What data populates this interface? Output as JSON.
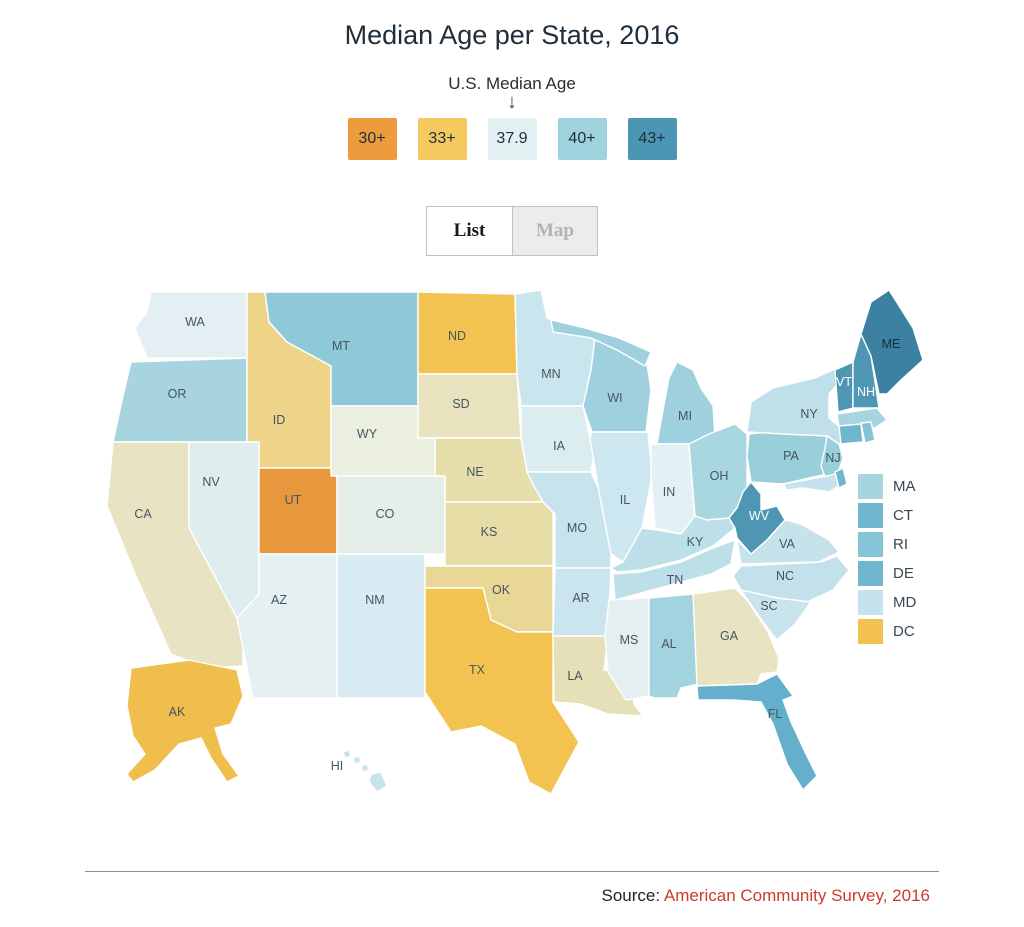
{
  "title": "Median Age per State, 2016",
  "legend": {
    "annotation": "U.S. Median Age",
    "arrow_icon": "↓",
    "bins": [
      {
        "label": "30+",
        "color": "#EC9C3D"
      },
      {
        "label": "33+",
        "color": "#F6C95E"
      },
      {
        "label": "37.9",
        "color": "#E4F1F3"
      },
      {
        "label": "40+",
        "color": "#9ED3DE"
      },
      {
        "label": "43+",
        "color": "#4C95B4"
      }
    ]
  },
  "view_toggle": {
    "options": [
      "List",
      "Map"
    ],
    "active": "List"
  },
  "small_state_legend": [
    {
      "abbr": "MA",
      "color": "#A6D4DF"
    },
    {
      "abbr": "CT",
      "color": "#6FB6CF"
    },
    {
      "abbr": "RI",
      "color": "#85C3D6"
    },
    {
      "abbr": "DE",
      "color": "#6FB6CF"
    },
    {
      "abbr": "MD",
      "color": "#C5E3EC"
    },
    {
      "abbr": "DC",
      "color": "#F2C150"
    }
  ],
  "source": {
    "label": "Source: ",
    "citation": "American Community Survey, 2016"
  },
  "chart_data": {
    "type": "choropleth",
    "title": "Median Age per State, 2016",
    "us_median_age": "37.9",
    "legend_bins": [
      "30+",
      "33+",
      "37.9",
      "40+",
      "43+"
    ],
    "legend_note": "U.S. Median Age arrow points to 37.9 bin",
    "states": [
      {
        "abbr": "WA",
        "fill": "#E3EFF2"
      },
      {
        "abbr": "OR",
        "fill": "#A8D4DF"
      },
      {
        "abbr": "CA",
        "fill": "#E8E4C3"
      },
      {
        "abbr": "NV",
        "fill": "#E0EDEF"
      },
      {
        "abbr": "ID",
        "fill": "#EDD488"
      },
      {
        "abbr": "MT",
        "fill": "#8FC9D8"
      },
      {
        "abbr": "WY",
        "fill": "#EAEFE0"
      },
      {
        "abbr": "UT",
        "fill": "#E8983C"
      },
      {
        "abbr": "CO",
        "fill": "#E4EDE7"
      },
      {
        "abbr": "AZ",
        "fill": "#E4F0F2"
      },
      {
        "abbr": "NM",
        "fill": "#D9ECF3"
      },
      {
        "abbr": "ND",
        "fill": "#F3C351"
      },
      {
        "abbr": "SD",
        "fill": "#E8E3BE"
      },
      {
        "abbr": "NE",
        "fill": "#E6DEAB"
      },
      {
        "abbr": "KS",
        "fill": "#E5DCA6"
      },
      {
        "abbr": "OK",
        "fill": "#E9D795"
      },
      {
        "abbr": "TX",
        "fill": "#F3C351"
      },
      {
        "abbr": "MN",
        "fill": "#C9E6EE"
      },
      {
        "abbr": "IA",
        "fill": "#DCEDEF"
      },
      {
        "abbr": "MO",
        "fill": "#C7E4ED"
      },
      {
        "abbr": "AR",
        "fill": "#CBE5EE"
      },
      {
        "abbr": "LA",
        "fill": "#E6E0B8"
      },
      {
        "abbr": "WI",
        "fill": "#9ED1DD"
      },
      {
        "abbr": "IL",
        "fill": "#CDE7F0"
      },
      {
        "abbr": "MI",
        "fill": "#9ED1DD"
      },
      {
        "abbr": "IN",
        "fill": "#E4F1F4"
      },
      {
        "abbr": "OH",
        "fill": "#A9D7E0"
      },
      {
        "abbr": "KY",
        "fill": "#BCDFE9"
      },
      {
        "abbr": "TN",
        "fill": "#BCDFE9"
      },
      {
        "abbr": "MS",
        "fill": "#E3EFF1"
      },
      {
        "abbr": "AL",
        "fill": "#A3D3DE"
      },
      {
        "abbr": "GA",
        "fill": "#E8E3C1"
      },
      {
        "abbr": "FL",
        "fill": "#64AFCB"
      },
      {
        "abbr": "PA",
        "fill": "#99CEDB"
      },
      {
        "abbr": "NY",
        "fill": "#BFE0EA"
      },
      {
        "abbr": "NJ",
        "fill": "#99CEDB"
      },
      {
        "abbr": "VT",
        "fill": "#4E96B4",
        "label_color": "#ffffff"
      },
      {
        "abbr": "NH",
        "fill": "#4E96B4",
        "label_color": "#ffffff"
      },
      {
        "abbr": "ME",
        "fill": "#3C80A2",
        "label_color": "#14303c"
      },
      {
        "abbr": "MA",
        "fill": "#A6D4DF"
      },
      {
        "abbr": "CT",
        "fill": "#6FB6CF"
      },
      {
        "abbr": "RI",
        "fill": "#85C3D6"
      },
      {
        "abbr": "WV",
        "fill": "#4E96B4",
        "label_color": "#ffffff"
      },
      {
        "abbr": "VA",
        "fill": "#C6E3EC"
      },
      {
        "abbr": "NC",
        "fill": "#C2E1EB"
      },
      {
        "abbr": "SC",
        "fill": "#C9E4ED"
      },
      {
        "abbr": "MD",
        "fill": "#C5E3EC"
      },
      {
        "abbr": "DE",
        "fill": "#6FB6CF"
      },
      {
        "abbr": "AK",
        "fill": "#F0BE4D"
      },
      {
        "abbr": "HI",
        "fill": "#C7E4ED"
      }
    ]
  }
}
